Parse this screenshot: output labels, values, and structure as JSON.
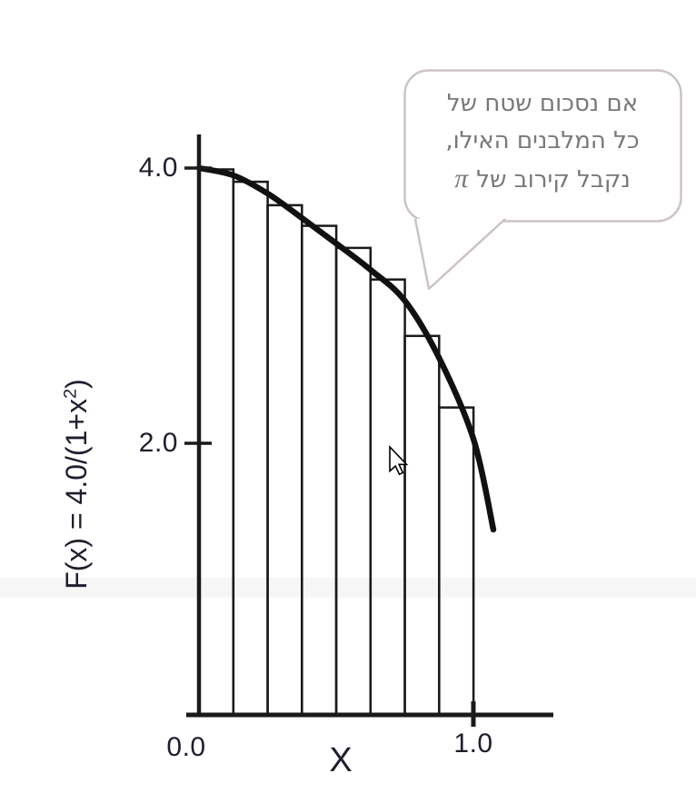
{
  "speech_bubble": {
    "lines": [
      "אם נסכום שטח של",
      "כל המלבנים האילו,",
      "נקבל קירוב של"
    ],
    "pi_symbol": "π",
    "border_color": "#cdc3c3",
    "text_color": "#787878"
  },
  "chart_data": {
    "type": "line",
    "title": "",
    "xlabel": "X",
    "ylabel": "F(x) = 4.0/(1+x²)",
    "ylabel_parts": {
      "prefix": "F(x) = 4.0/(1+x",
      "sup": "2",
      "suffix": ")"
    },
    "xlim": [
      0,
      1.3
    ],
    "ylim": [
      0,
      4.2
    ],
    "grid": false,
    "legend": false,
    "x_ticks": [
      {
        "value": 0.0,
        "label": "0.0",
        "tick_mark": false
      },
      {
        "value": 1.0,
        "label": "1.0",
        "tick_mark": true
      }
    ],
    "y_ticks": [
      {
        "value": 4.0,
        "label": "4.0"
      },
      {
        "value": 2.0,
        "label": "2.0"
      }
    ],
    "curve": {
      "name": "F(x) = 4.0/(1+x²)",
      "color": "#111111",
      "points": [
        [
          0,
          4.0
        ],
        [
          0.125,
          3.947
        ],
        [
          0.25,
          3.815
        ],
        [
          0.375,
          3.637
        ],
        [
          0.5,
          3.452
        ],
        [
          0.625,
          3.261
        ],
        [
          0.75,
          3.036
        ],
        [
          0.875,
          2.62
        ],
        [
          1.0,
          2.033
        ],
        [
          1.073,
          1.373
        ]
      ]
    },
    "rectangles": {
      "count": 8,
      "width": 0.125,
      "x_starts": [
        0,
        0.125,
        0.25,
        0.375,
        0.5,
        0.625,
        0.75,
        0.875
      ],
      "heights": [
        3.99,
        3.9,
        3.73,
        3.58,
        3.42,
        3.19,
        2.78,
        2.26
      ],
      "stroke_color": "#1a1a1a"
    },
    "axis_color": "#1a1a1a",
    "label_color": "#1e1e2e"
  }
}
